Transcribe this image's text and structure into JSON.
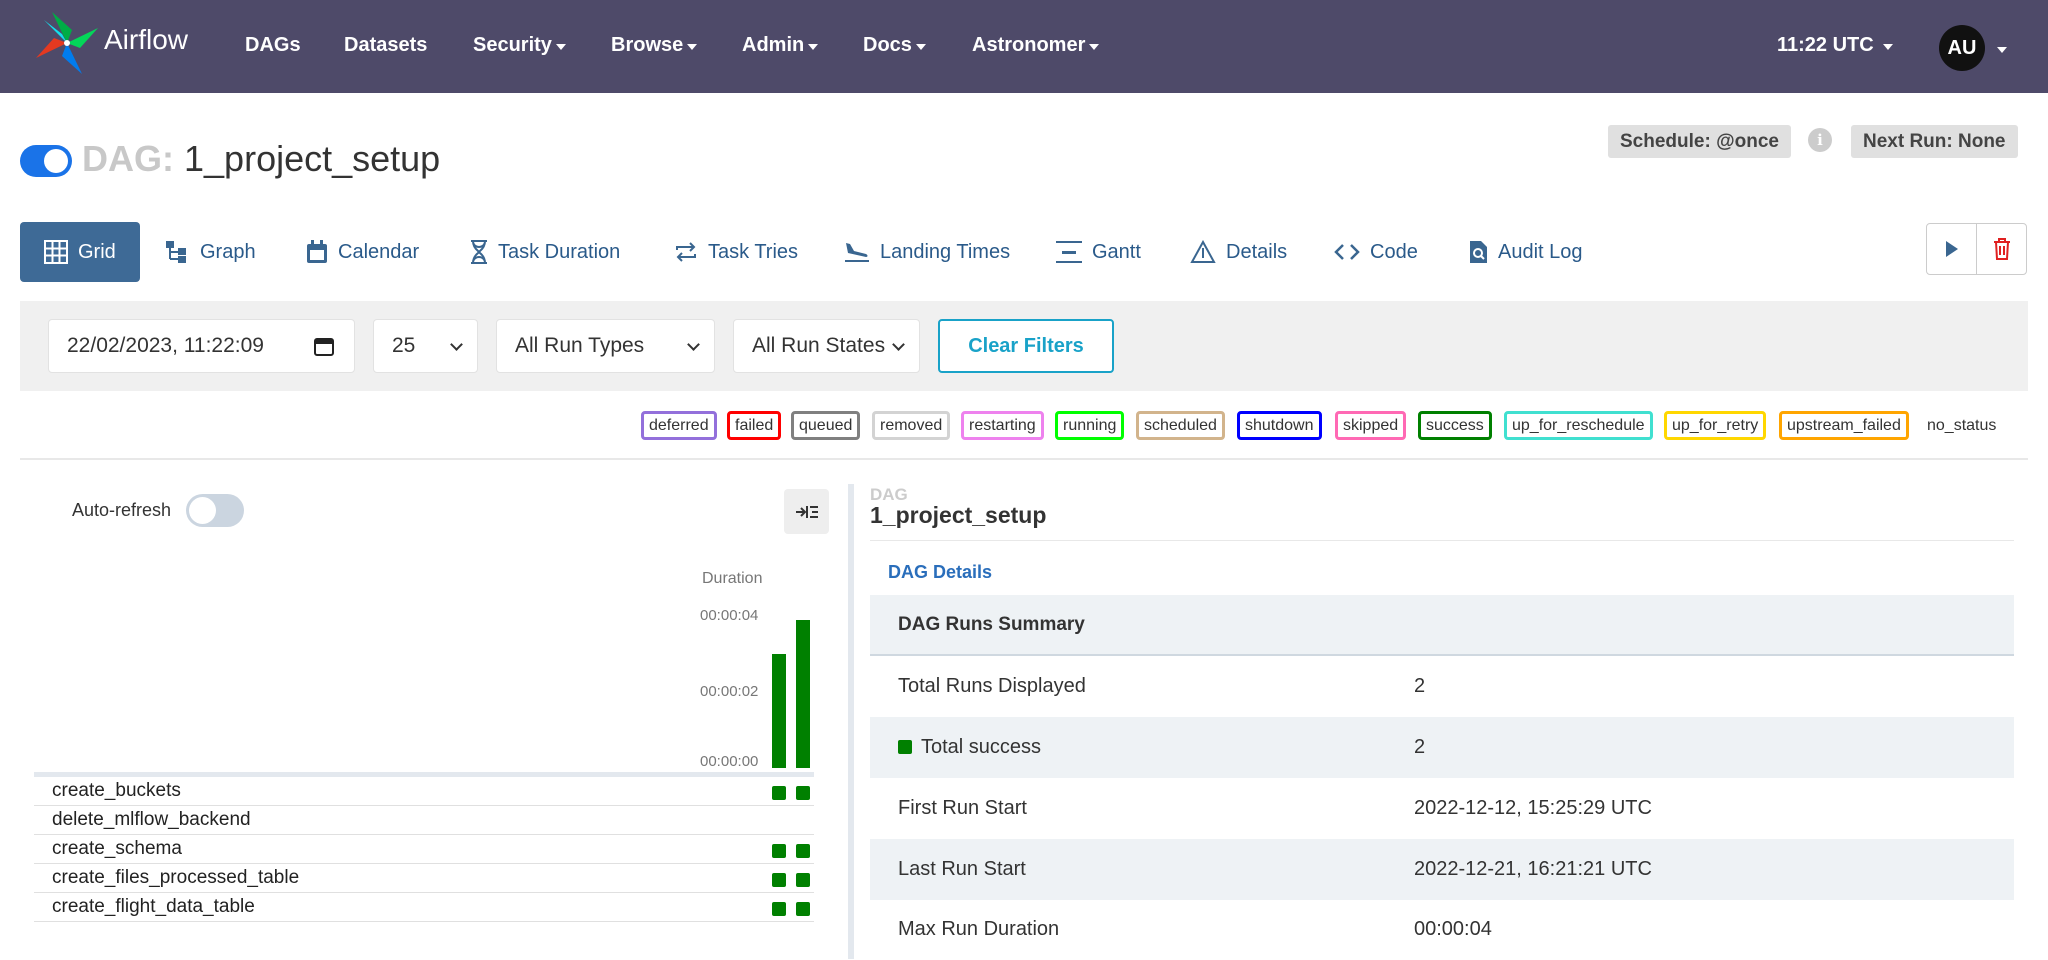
{
  "navbar": {
    "brand": "Airflow",
    "items": [
      "DAGs",
      "Datasets",
      "Security",
      "Browse",
      "Admin",
      "Docs",
      "Astronomer"
    ],
    "time": "11:22 UTC",
    "avatar": "AU"
  },
  "dag": {
    "prefix": "DAG:",
    "name": "1_project_setup",
    "schedule": "Schedule: @once",
    "next_run": "Next Run: None"
  },
  "tabs": [
    "Grid",
    "Graph",
    "Calendar",
    "Task Duration",
    "Task Tries",
    "Landing Times",
    "Gantt",
    "Details",
    "Code",
    "Audit Log"
  ],
  "filters": {
    "datetime": "22/02/2023, 11:22:09",
    "num_runs": "25",
    "run_types": "All Run Types",
    "run_states": "All Run States",
    "clear": "Clear Filters"
  },
  "legend": [
    {
      "label": "deferred",
      "color": "#9370db"
    },
    {
      "label": "failed",
      "color": "#ff0000"
    },
    {
      "label": "queued",
      "color": "#808080"
    },
    {
      "label": "removed",
      "color": "#d3d3d3"
    },
    {
      "label": "restarting",
      "color": "#ee82ee"
    },
    {
      "label": "running",
      "color": "#00ff00"
    },
    {
      "label": "scheduled",
      "color": "#d2b48c"
    },
    {
      "label": "shutdown",
      "color": "#0000ff"
    },
    {
      "label": "skipped",
      "color": "#ff69b4"
    },
    {
      "label": "success",
      "color": "#008000"
    },
    {
      "label": "up_for_reschedule",
      "color": "#40e0d0"
    },
    {
      "label": "up_for_retry",
      "color": "#ffd700"
    },
    {
      "label": "upstream_failed",
      "color": "#ffa500"
    },
    {
      "label": "no_status",
      "color": ""
    }
  ],
  "grid": {
    "auto_refresh": "Auto-refresh",
    "duration_label": "Duration",
    "ticks": [
      "00:00:04",
      "00:00:02",
      "00:00:00"
    ],
    "run_durations_sec": [
      3.0,
      3.9
    ],
    "tasks": [
      {
        "name": "create_buckets",
        "runs": 2
      },
      {
        "name": "delete_mlflow_backend",
        "runs": 0
      },
      {
        "name": "create_schema",
        "runs": 2
      },
      {
        "name": "create_files_processed_table",
        "runs": 2
      },
      {
        "name": "create_flight_data_table",
        "runs": 2
      }
    ]
  },
  "details": {
    "caption": "DAG",
    "title": "1_project_setup",
    "link": "DAG Details",
    "summary_header": "DAG Runs Summary",
    "rows": [
      {
        "key": "Total Runs Displayed",
        "value": "2"
      },
      {
        "key": "Total success",
        "value": "2"
      },
      {
        "key": "First Run Start",
        "value": "2022-12-12, 15:25:29 UTC"
      },
      {
        "key": "Last Run Start",
        "value": "2022-12-21, 16:21:21 UTC"
      },
      {
        "key": "Max Run Duration",
        "value": "00:00:04"
      }
    ]
  }
}
